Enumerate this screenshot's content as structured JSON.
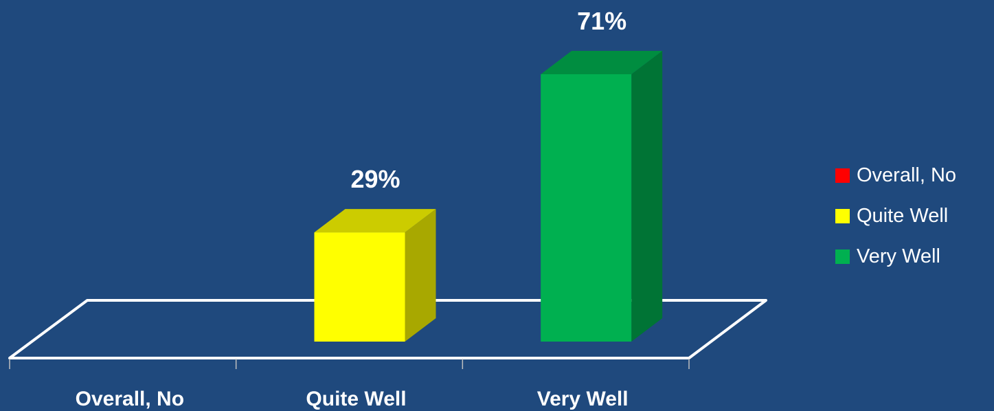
{
  "chart_data": {
    "type": "bar",
    "categories": [
      "Overall, No",
      "Quite Well",
      "Very Well"
    ],
    "values": [
      0,
      29,
      71
    ],
    "value_labels": [
      "",
      "29%",
      "71%"
    ],
    "colors": [
      "#ff0000",
      "#ffff00",
      "#00b050"
    ],
    "ylim": [
      0,
      80
    ],
    "grid": false,
    "legend_position": "right",
    "legend": [
      "Overall, No",
      "Quite Well",
      "Very Well"
    ]
  }
}
